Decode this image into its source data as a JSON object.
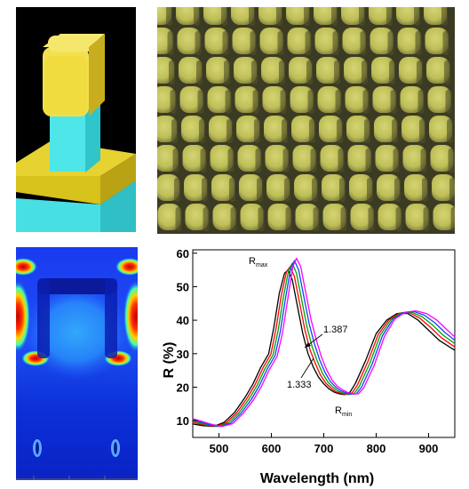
{
  "chart_data": {
    "type": "line",
    "xlabel": "Wavelength (nm)",
    "ylabel": "R (%)",
    "xlim": [
      450,
      950
    ],
    "ylim": [
      5,
      61
    ],
    "xticks": [
      500,
      600,
      700,
      800,
      900
    ],
    "yticks": [
      10,
      20,
      30,
      40,
      50,
      60
    ],
    "grid": false,
    "annotations": {
      "rmax_main": "R",
      "rmax_sub": "max",
      "rmin_main": "R",
      "rmin_sub": "min",
      "n_high": "1.387",
      "n_low": "1.333"
    },
    "series": [
      {
        "color": "#000000",
        "shift": 0,
        "x": [
          450,
          470,
          490,
          510,
          530,
          550,
          565,
          580,
          595,
          605,
          615,
          625,
          632,
          640,
          650,
          660,
          670,
          680,
          690,
          700,
          710,
          720,
          730,
          740,
          750,
          760,
          780,
          800,
          820,
          840,
          860,
          880,
          900,
          920,
          950
        ],
        "y": [
          9,
          8.5,
          8.3,
          9.5,
          12.5,
          17,
          21,
          26,
          30,
          38,
          48,
          54,
          55,
          52,
          44,
          36,
          30,
          26,
          23,
          21,
          19.5,
          18.5,
          18,
          17.8,
          18.5,
          21,
          28,
          36,
          40,
          42,
          42,
          40,
          37,
          34,
          31
        ]
      },
      {
        "color": "#ff0000",
        "shift": 4,
        "x": [
          450,
          470,
          490,
          510,
          530,
          550,
          565,
          580,
          595,
          605,
          615,
          625,
          632,
          640,
          650,
          660,
          670,
          680,
          690,
          700,
          710,
          720,
          730,
          740,
          750,
          760,
          780,
          800,
          820,
          840,
          860,
          880,
          900,
          920,
          950
        ],
        "y": [
          9.5,
          8.6,
          8.3,
          9.4,
          12.4,
          16.8,
          20.8,
          25.8,
          29.8,
          37.5,
          47.5,
          54.5,
          56,
          53,
          45,
          37,
          31,
          27,
          23.5,
          21.2,
          19.7,
          18.6,
          18.1,
          17.8,
          18.3,
          20.6,
          27.6,
          35.8,
          40.1,
          42.1,
          42.2,
          40.5,
          37.8,
          34.8,
          32
        ]
      },
      {
        "color": "#00a000",
        "shift": 8,
        "x": [
          450,
          470,
          490,
          510,
          530,
          550,
          565,
          580,
          595,
          605,
          615,
          625,
          632,
          640,
          650,
          660,
          670,
          680,
          690,
          700,
          710,
          720,
          730,
          740,
          750,
          760,
          780,
          800,
          820,
          840,
          860,
          880,
          900,
          920,
          950
        ],
        "y": [
          10,
          8.7,
          8.3,
          9.3,
          12.3,
          16.6,
          20.6,
          25.6,
          29.6,
          37,
          47,
          55,
          57,
          54,
          46,
          38,
          32,
          27.6,
          24,
          21.5,
          19.9,
          18.8,
          18.2,
          17.8,
          18.1,
          20.3,
          27.2,
          35.6,
          40.2,
          42.2,
          42.4,
          41,
          38.5,
          35.5,
          33
        ]
      },
      {
        "color": "#1040ff",
        "shift": 12,
        "x": [
          450,
          470,
          490,
          510,
          530,
          550,
          565,
          580,
          595,
          605,
          615,
          625,
          632,
          640,
          650,
          660,
          670,
          680,
          690,
          700,
          710,
          720,
          730,
          740,
          750,
          760,
          780,
          800,
          820,
          840,
          860,
          880,
          900,
          920,
          950
        ],
        "y": [
          10.3,
          8.8,
          8.3,
          9.2,
          12.2,
          16.4,
          20.4,
          25.4,
          29.4,
          36.5,
          46.5,
          55.5,
          57.8,
          55,
          47,
          39,
          33,
          28.2,
          24.5,
          21.8,
          20.1,
          19,
          18.3,
          17.9,
          18,
          20,
          26.8,
          35.4,
          40.3,
          42.3,
          42.6,
          41.5,
          39.2,
          36.2,
          34
        ]
      },
      {
        "color": "#ff00ff",
        "shift": 16,
        "x": [
          450,
          470,
          490,
          510,
          530,
          550,
          565,
          580,
          595,
          605,
          615,
          625,
          632,
          640,
          650,
          660,
          670,
          680,
          690,
          700,
          710,
          720,
          730,
          740,
          750,
          760,
          780,
          800,
          820,
          840,
          860,
          880,
          900,
          920,
          950
        ],
        "y": [
          10.6,
          8.9,
          8.3,
          9.1,
          12.1,
          16.2,
          20.2,
          25.2,
          29.2,
          36,
          46,
          56,
          58.5,
          56,
          48,
          40,
          34,
          28.8,
          25,
          22.1,
          20.3,
          19.2,
          18.4,
          18,
          18,
          19.7,
          26.4,
          35.2,
          40.4,
          42.4,
          42.8,
          42,
          40,
          37,
          35
        ]
      }
    ]
  }
}
